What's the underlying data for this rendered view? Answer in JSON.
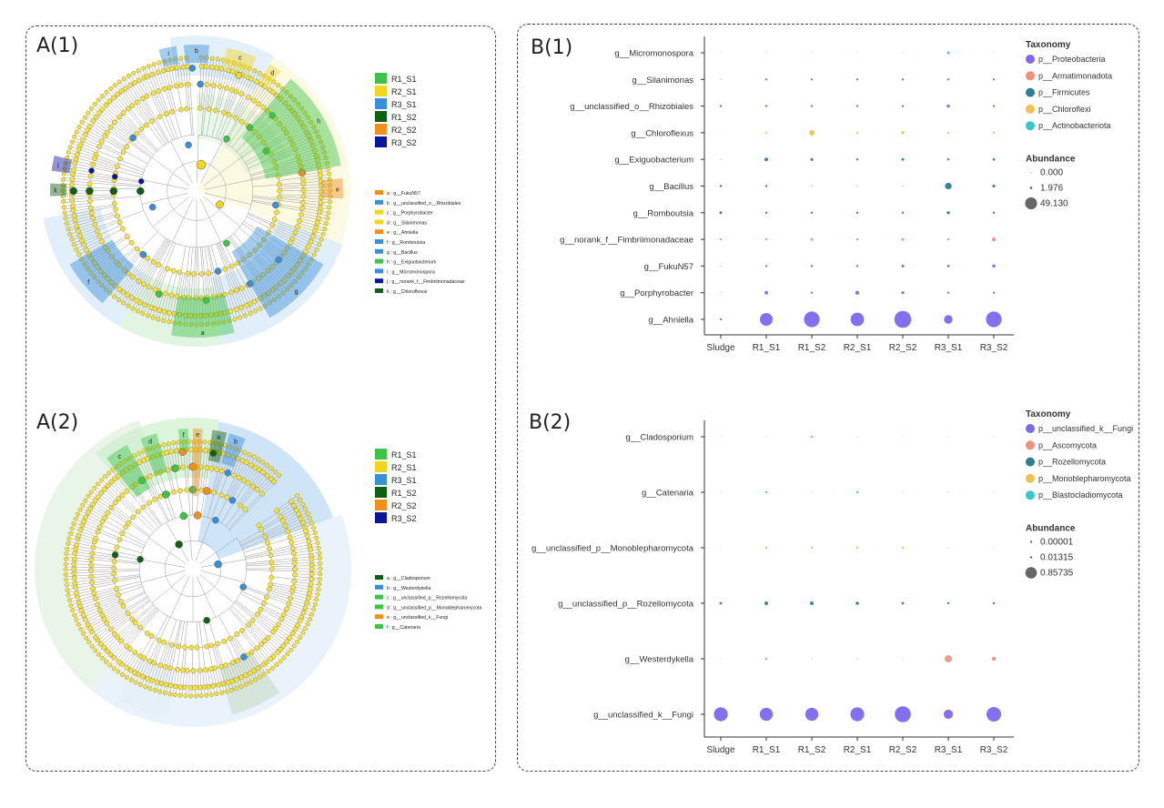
{
  "panels": {
    "a1": "A(1)",
    "a2": "A(2)",
    "b1": "B(1)",
    "b2": "B(2)"
  },
  "colors": {
    "R1_S1": "#3ec34a",
    "R2_S1": "#f1d51f",
    "R3_S1": "#3a8fd9",
    "R1_S2": "#0f5f14",
    "R2_S2": "#f0901c",
    "R3_S2": "#0a159a",
    "node_yellow": "#f1e14a",
    "tree_line": "#9a9a9a",
    "p_Proteobacteria": "#7b68ee",
    "p_Armatimonadota": "#f0917c",
    "p_Firmicutes": "#2e7f96",
    "p_Chloroflexi": "#f0c24e",
    "p_Actinobacteriota": "#35c9c9",
    "p_unclassified_k_Fungi": "#7b68ee",
    "p_Ascomycota": "#f0917c",
    "p_Rozellomycota": "#2e7f96",
    "p_Monoblepharomycota": "#f0c24e",
    "p_Blastocladiomycota": "#35c9c9"
  },
  "a1": {
    "group_legend": [
      "R1_S1",
      "R2_S1",
      "R3_S1",
      "R1_S2",
      "R2_S2",
      "R3_S2"
    ],
    "taxa_legend": [
      {
        "text": "a : g__FukuN57",
        "color": "#f0901c"
      },
      {
        "text": "b : g__unclassified_o__Rhizobiales",
        "color": "#3a8fd9"
      },
      {
        "text": "c : g__Porphyrobacter",
        "color": "#f1d51f"
      },
      {
        "text": "d : g__Silanimonas",
        "color": "#f1d51f"
      },
      {
        "text": "e : g__Ahniella",
        "color": "#f0901c"
      },
      {
        "text": "f : g__Romboutsia",
        "color": "#3a8fd9"
      },
      {
        "text": "g : g__Bacillus",
        "color": "#3a8fd9"
      },
      {
        "text": "h : g__Exiguobacterium",
        "color": "#3ec34a"
      },
      {
        "text": "i : g__Micromonospora",
        "color": "#3a8fd9"
      },
      {
        "text": "j : g__norank_f__Fimbriimonadaceae",
        "color": "#0a159a"
      },
      {
        "text": "k : g__Chloroflexus",
        "color": "#0f5f14"
      }
    ],
    "sector_letters": [
      "a",
      "b",
      "c",
      "d",
      "e",
      "f",
      "g",
      "h",
      "i",
      "j",
      "k"
    ]
  },
  "a2": {
    "group_legend": [
      "R1_S1",
      "R2_S1",
      "R3_S1",
      "R1_S2",
      "R2_S2",
      "R3_S2"
    ],
    "taxa_legend": [
      {
        "text": "a : g__Cladosporium",
        "color": "#0f5f14"
      },
      {
        "text": "b : g__Westerdykella",
        "color": "#3a8fd9"
      },
      {
        "text": "c : g__unclassified_p__Rozellomycota",
        "color": "#3ec34a"
      },
      {
        "text": "d : g__unclassified_p__Monoblepharomycota",
        "color": "#3ec34a"
      },
      {
        "text": "e : g__unclassified_k__Fungi",
        "color": "#f0901c"
      },
      {
        "text": "f : g__Catenaria",
        "color": "#3ec34a"
      }
    ],
    "sector_letters": [
      "a",
      "b",
      "c",
      "d",
      "e",
      "f"
    ]
  },
  "chart_data": [
    {
      "type": "scatter",
      "title": "B(1)",
      "subtype": "bubble",
      "categories": [
        "Sludge",
        "R1_S1",
        "R1_S2",
        "R2_S1",
        "R2_S2",
        "R3_S1",
        "R3_S2"
      ],
      "genera": [
        {
          "name": "g__Micromonospora",
          "phylum": "p_Actinobacteriota",
          "values": [
            0.0,
            0.0,
            0.0,
            0.0,
            0.0,
            0.9,
            0.0
          ]
        },
        {
          "name": "g__Silanimonas",
          "phylum": "p_Proteobacteria",
          "values": [
            0.0,
            0.4,
            0.1,
            0.4,
            0.1,
            0.1,
            0.1
          ]
        },
        {
          "name": "g__unclassified_o__Rhizobiales",
          "phylum": "p_Proteobacteria",
          "values": [
            0.1,
            0.2,
            0.1,
            0.5,
            0.2,
            1.2,
            0.6
          ]
        },
        {
          "name": "g__Chloroflexus",
          "phylum": "p_Chloroflexi",
          "values": [
            0.0,
            0.3,
            3.5,
            0.2,
            1.2,
            0.1,
            0.6
          ]
        },
        {
          "name": "g__Exiguobacterium",
          "phylum": "p_Firmicutes",
          "values": [
            0.0,
            1.5,
            1.0,
            0.1,
            0.8,
            0.3,
            0.7
          ]
        },
        {
          "name": "g__Bacillus",
          "phylum": "p_Firmicutes",
          "values": [
            0.1,
            0.1,
            0.0,
            0.0,
            0.0,
            5.5,
            1.0
          ]
        },
        {
          "name": "g__Romboutsia",
          "phylum": "p_Firmicutes",
          "values": [
            0.9,
            0.6,
            0.4,
            0.6,
            0.4,
            1.2,
            0.6
          ]
        },
        {
          "name": "g__norank_f__Fimbriimonadaceae",
          "phylum": "p_Armatimonadota",
          "values": [
            0.3,
            0.6,
            0.9,
            0.6,
            0.9,
            0.6,
            2.0
          ]
        },
        {
          "name": "g__FukuN57",
          "phylum": "p_Proteobacteria",
          "values": [
            0.0,
            0.4,
            0.6,
            0.6,
            1.0,
            0.8,
            1.2
          ]
        },
        {
          "name": "g__Porphyrobacter",
          "phylum": "p_Proteobacteria",
          "values": [
            0.0,
            1.5,
            0.5,
            1.8,
            1.0,
            0.5,
            0.5
          ]
        },
        {
          "name": "g__Ahniella",
          "phylum": "p_Proteobacteria",
          "values": [
            0.4,
            20.0,
            30.0,
            22.0,
            35.0,
            9.0,
            30.0
          ]
        }
      ],
      "legend_taxonomy_title": "Taxonomy",
      "legend_taxonomy": [
        {
          "label": "p__Proteobacteria",
          "key": "p_Proteobacteria"
        },
        {
          "label": "p__Armatimonadota",
          "key": "p_Armatimonadota"
        },
        {
          "label": "p__Firmicutes",
          "key": "p_Firmicutes"
        },
        {
          "label": "p__Chloroflexi",
          "key": "p_Chloroflexi"
        },
        {
          "label": "p__Actinobacteriota",
          "key": "p_Actinobacteriota"
        }
      ],
      "legend_abundance_title": "Abundance",
      "legend_abundance": [
        {
          "label": "0.000",
          "value": 0.0
        },
        {
          "label": "1.976",
          "value": 1.976
        },
        {
          "label": "49.130",
          "value": 49.13
        }
      ],
      "max_value": 49.13
    },
    {
      "type": "scatter",
      "title": "B(2)",
      "subtype": "bubble",
      "categories": [
        "Sludge",
        "R1_S1",
        "R1_S2",
        "R2_S1",
        "R2_S2",
        "R3_S1",
        "R3_S2"
      ],
      "genera": [
        {
          "name": "g__Cladosporium",
          "phylum": "p_Ascomycota",
          "values": [
            0.0,
            0.0,
            0.004,
            0.0,
            0.0,
            0.0,
            0.0
          ]
        },
        {
          "name": "g__Catenaria",
          "phylum": "p_Blastocladiomycota",
          "values": [
            0.0,
            0.008,
            0.0,
            0.005,
            0.0,
            0.0,
            0.0
          ]
        },
        {
          "name": "g__unclassified_p__Monoblepharomycota",
          "phylum": "p_Monoblepharomycota",
          "values": [
            0.0,
            0.004,
            0.003,
            0.003,
            0.002,
            0.0,
            0.0
          ]
        },
        {
          "name": "g__unclassified_p__Rozellomycota",
          "phylum": "p_Rozellomycota",
          "values": [
            0.015,
            0.03,
            0.03,
            0.025,
            0.015,
            0.003,
            0.002
          ]
        },
        {
          "name": "g__Westerdykella",
          "phylum": "p_Ascomycota",
          "values": [
            0.0,
            0.002,
            0.0,
            0.0,
            0.0,
            0.12,
            0.04
          ]
        },
        {
          "name": "g__unclassified_k__Fungi",
          "phylum": "p_unclassified_k_Fungi",
          "values": [
            0.45,
            0.4,
            0.4,
            0.45,
            0.6,
            0.2,
            0.5
          ]
        }
      ],
      "legend_taxonomy_title": "Taxonomy",
      "legend_taxonomy": [
        {
          "label": "p__unclassified_k__Fungi",
          "key": "p_unclassified_k_Fungi"
        },
        {
          "label": "p__Ascomycota",
          "key": "p_Ascomycota"
        },
        {
          "label": "p__Rozellomycota",
          "key": "p_Rozellomycota"
        },
        {
          "label": "p__Monoblepharomycota",
          "key": "p_Monoblepharomycota"
        },
        {
          "label": "p__Blastocladiomycota",
          "key": "p_Blastocladiomycota"
        }
      ],
      "legend_abundance_title": "Abundance",
      "legend_abundance": [
        {
          "label": "0.00001",
          "value": 1e-05
        },
        {
          "label": "0.01315",
          "value": 0.01315
        },
        {
          "label": "0.85735",
          "value": 0.85735
        }
      ],
      "max_value": 0.85735
    }
  ]
}
